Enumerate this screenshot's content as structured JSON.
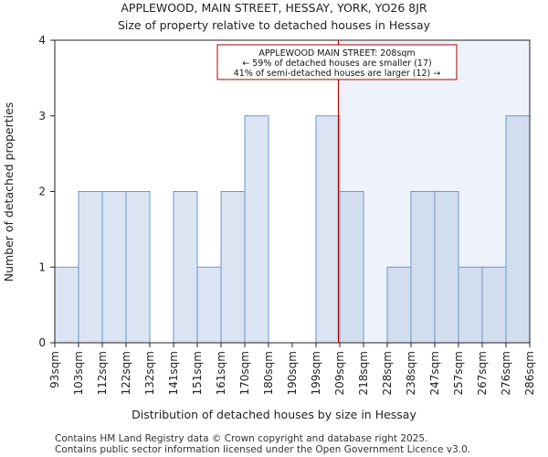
{
  "chart_data": {
    "type": "bar",
    "title": "APPLEWOOD, MAIN STREET, HESSAY, YORK, YO26 8JR",
    "subtitle": "Size of property relative to detached houses in Hessay",
    "xlabel": "Distribution of detached houses by size in Hessay",
    "ylabel": "Number of detached properties",
    "categories": [
      "93sqm",
      "103sqm",
      "112sqm",
      "122sqm",
      "132sqm",
      "141sqm",
      "151sqm",
      "161sqm",
      "170sqm",
      "180sqm",
      "190sqm",
      "199sqm",
      "209sqm",
      "218sqm",
      "228sqm",
      "238sqm",
      "247sqm",
      "257sqm",
      "267sqm",
      "276sqm",
      "286sqm"
    ],
    "values": [
      1,
      2,
      2,
      2,
      0,
      2,
      1,
      2,
      3,
      0,
      0,
      3,
      2,
      0,
      1,
      2,
      2,
      1,
      1,
      3,
      0
    ],
    "ylim": [
      0,
      4
    ],
    "yticks": [
      0,
      1,
      2,
      3,
      4
    ],
    "property_marker_bin": 12,
    "highlight_from_bin": 12,
    "annotation": {
      "line1": "APPLEWOOD MAIN STREET: 208sqm",
      "line2": "← 59% of detached houses are smaller (17)",
      "line3": "41% of semi-detached houses are larger (12) →"
    },
    "colors": {
      "bar_fill": "#dae4f2",
      "bar_fill_highlight": "#d2ddef",
      "bar_edge": "#6f96c8",
      "highlight_bg": "#eef2fa",
      "marker": "#aa0000"
    }
  },
  "footer": {
    "line1": "Contains HM Land Registry data © Crown copyright and database right 2025.",
    "line2": "Contains public sector information licensed under the Open Government Licence v3.0."
  }
}
